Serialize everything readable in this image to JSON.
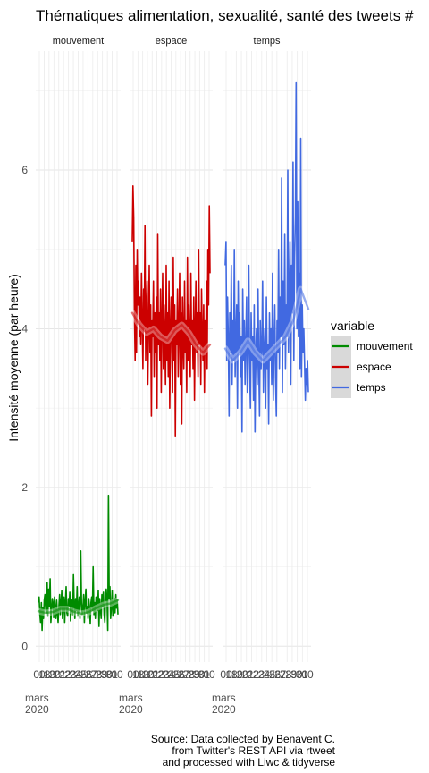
{
  "chart_data": {
    "type": "line",
    "title": "Thématiques alimentation, sexualité, santé des tweets #",
    "ylabel": "Intensité moyenne (par heure)",
    "xlabel": "",
    "ylim": [
      -0.2,
      7.5
    ],
    "y_ticks": [
      0,
      2,
      4,
      6
    ],
    "grid": true,
    "legend": {
      "title": "variable",
      "position": "right"
    },
    "x_tick_labels": [
      "00",
      "mars\n2020",
      "18",
      "19",
      "20",
      "21",
      "22",
      "23",
      "24",
      "25",
      "26",
      "27",
      "28",
      "29",
      "30",
      "31",
      "00"
    ],
    "caption": [
      "Source: Data collected by Benavent C.",
      "from Twitter's REST API via rtweet",
      "and processed with Liwc & tidyverse"
    ],
    "facets": [
      {
        "name": "mouvement",
        "color": "#008B00",
        "x_range": [
          0,
          16
        ],
        "values": [
          0.55,
          0.62,
          0.4,
          0.3,
          0.55,
          0.2,
          0.48,
          0.35,
          0.58,
          0.65,
          0.45,
          0.42,
          0.8,
          0.38,
          0.72,
          0.5,
          0.85,
          0.3,
          0.44,
          0.6,
          0.55,
          0.36,
          0.62,
          0.48,
          0.35,
          0.58,
          0.42,
          0.3,
          0.5,
          0.65,
          0.4,
          0.55,
          0.7,
          0.35,
          0.48,
          0.62,
          0.3,
          0.55,
          0.75,
          0.42,
          0.38,
          0.6,
          0.5,
          0.68,
          0.32,
          0.45,
          0.58,
          0.4,
          0.9,
          0.52,
          0.35,
          0.6,
          0.45,
          0.75,
          0.38,
          0.5,
          0.62,
          0.35,
          1.2,
          0.55,
          0.4,
          0.48,
          0.65,
          0.3,
          0.58,
          0.72,
          0.42,
          0.5,
          0.35,
          0.6,
          0.48,
          0.28,
          0.55,
          0.62,
          0.45,
          1.0,
          0.4,
          0.55,
          0.35,
          0.62,
          0.52,
          0.45,
          0.7,
          0.25,
          0.6,
          0.48,
          0.35,
          0.65,
          0.5,
          0.68,
          0.4,
          0.3,
          0.6,
          0.72,
          0.55,
          0.2,
          1.9,
          0.6,
          0.75,
          0.35,
          0.5,
          0.7,
          0.38,
          0.55,
          0.6,
          0.42,
          0.65,
          0.48,
          0.58,
          0.4
        ],
        "smooth": [
          0.44,
          0.42,
          0.43,
          0.47,
          0.47,
          0.43,
          0.41,
          0.43,
          0.48,
          0.52,
          0.54,
          0.58
        ]
      },
      {
        "name": "espace",
        "color": "#CC0000",
        "x_range": [
          0,
          16
        ],
        "values": [
          5.1,
          5.8,
          5.4,
          4.2,
          3.6,
          4.8,
          3.7,
          5.0,
          4.3,
          4.6,
          3.9,
          4.4,
          3.8,
          4.7,
          4.1,
          3.5,
          4.5,
          4.0,
          5.3,
          3.6,
          4.2,
          4.6,
          3.3,
          4.0,
          4.8,
          3.7,
          4.3,
          2.9,
          4.1,
          3.9,
          4.6,
          3.4,
          4.2,
          3.7,
          4.4,
          3.0,
          5.2,
          3.8,
          4.2,
          3.6,
          4.5,
          3.2,
          4.1,
          4.7,
          3.5,
          4.3,
          3.9,
          3.3,
          4.8,
          3.6,
          4.2,
          3.4,
          4.6,
          3.0,
          4.0,
          4.4,
          3.7,
          3.2,
          4.9,
          3.6,
          4.3,
          2.65,
          4.1,
          3.8,
          4.5,
          3.4,
          4.0,
          4.7,
          3.3,
          4.2,
          2.8,
          4.4,
          3.9,
          3.5,
          4.6,
          3.7,
          4.1,
          3.2,
          4.9,
          3.6,
          4.3,
          3.9,
          3.4,
          4.7,
          3.8,
          4.1,
          3.5,
          4.4,
          3.1,
          4.0,
          4.6,
          3.7,
          4.2,
          3.4,
          5.0,
          3.8,
          4.2,
          3.3,
          4.5,
          3.9,
          3.6,
          4.3,
          3.2,
          4.1,
          3.8,
          4.6,
          3.5,
          5.0,
          4.3,
          5.55,
          4.7
        ],
        "smooth": [
          4.2,
          4.05,
          3.95,
          4.0,
          3.9,
          3.85,
          3.98,
          4.05,
          3.95,
          3.8,
          3.7,
          3.8
        ]
      },
      {
        "name": "temps",
        "color": "#4169E1",
        "x_range": [
          0,
          16
        ],
        "values": [
          4.8,
          5.1,
          3.6,
          4.4,
          3.9,
          2.9,
          4.2,
          3.7,
          4.8,
          3.3,
          4.1,
          3.6,
          5.0,
          3.4,
          3.9,
          4.3,
          3.0,
          4.6,
          3.7,
          4.2,
          3.4,
          3.9,
          2.7,
          4.5,
          3.6,
          4.1,
          3.3,
          3.8,
          4.4,
          3.2,
          3.7,
          4.8,
          3.5,
          3.0,
          4.2,
          3.6,
          3.9,
          3.1,
          4.3,
          2.7,
          3.7,
          4.0,
          3.3,
          4.5,
          3.6,
          2.9,
          4.1,
          3.5,
          3.8,
          4.6,
          3.2,
          3.7,
          4.0,
          3.0,
          4.4,
          3.5,
          3.8,
          2.8,
          4.2,
          3.6,
          4.0,
          3.3,
          4.7,
          3.1,
          3.8,
          4.3,
          3.4,
          2.9,
          4.1,
          3.7,
          5.0,
          3.5,
          4.4,
          3.9,
          5.9,
          3.2,
          4.6,
          3.8,
          5.2,
          3.5,
          4.3,
          3.9,
          6.0,
          3.7,
          4.4,
          5.1,
          3.3,
          4.8,
          4.2,
          6.1,
          3.6,
          4.9,
          5.4,
          7.1,
          4.0,
          5.6,
          3.9,
          4.7,
          3.5,
          6.4,
          3.4,
          4.3,
          3.7,
          4.0,
          3.6,
          3.1,
          3.5,
          3.3,
          3.6,
          3.2
        ],
        "smooth": [
          3.75,
          3.6,
          3.7,
          3.85,
          3.7,
          3.6,
          3.7,
          3.8,
          3.9,
          4.1,
          4.5,
          4.25
        ]
      }
    ]
  }
}
